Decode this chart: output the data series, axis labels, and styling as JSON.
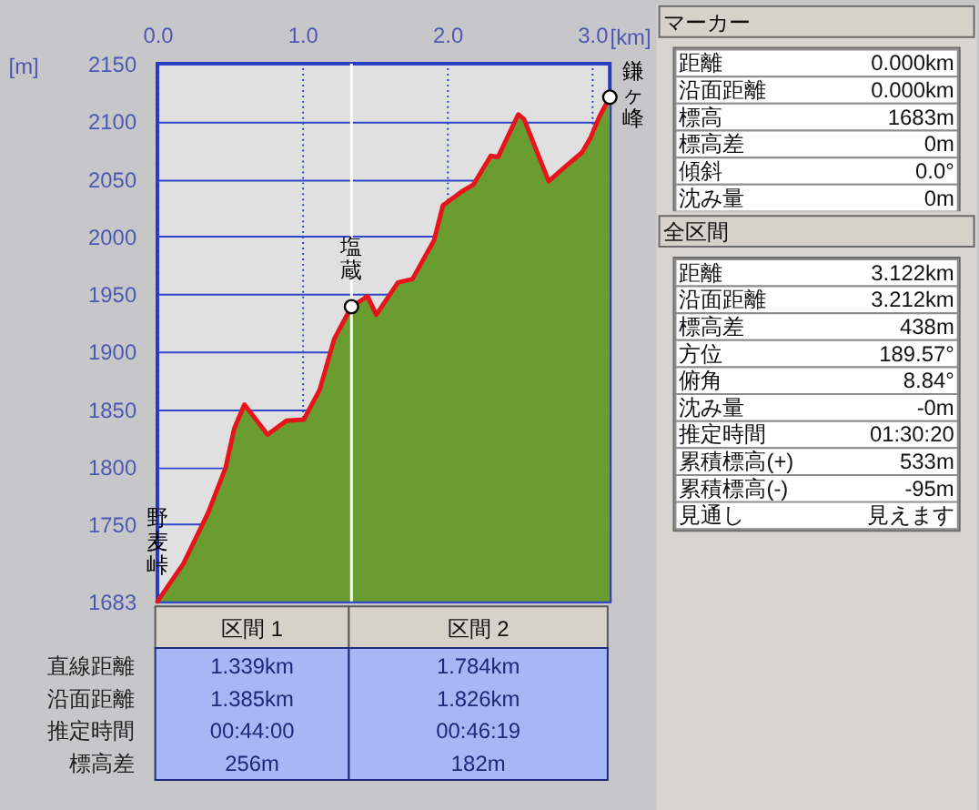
{
  "chart_data": [
    {
      "type": "area",
      "xlabel": "[km]",
      "ylabel": "[m]",
      "xlim": [
        0,
        3.122
      ],
      "ylim": [
        1683,
        2150
      ],
      "xticks": [
        {
          "value": 0,
          "label": "0.0"
        },
        {
          "value": 1,
          "label": "1.0"
        },
        {
          "value": 2,
          "label": "2.0"
        },
        {
          "value": 3,
          "label": "3.0"
        }
      ],
      "yticks": [
        1683,
        1750,
        1800,
        1850,
        1900,
        1950,
        2000,
        2050,
        2100,
        2150
      ],
      "grid": true,
      "x": [
        0,
        0.18,
        0.35,
        0.47,
        0.53,
        0.6,
        0.76,
        0.89,
        1.01,
        1.12,
        1.22,
        1.339,
        1.45,
        1.51,
        1.66,
        1.76,
        1.91,
        1.97,
        2.1,
        2.18,
        2.3,
        2.35,
        2.49,
        2.53,
        2.7,
        2.8,
        2.93,
        2.99,
        3.05,
        3.122
      ],
      "series": [
        {
          "type": "area",
          "color": "#6a9d30",
          "values": [
            1683,
            1716,
            1760,
            1799,
            1833,
            1854,
            1828,
            1840,
            1841,
            1867,
            1911,
            1939,
            1948,
            1932,
            1960,
            1963,
            1997,
            2027,
            2039,
            2045,
            2070,
            2069,
            2106,
            2102,
            2048,
            2059,
            2073,
            2086,
            2104,
            2121
          ]
        },
        {
          "type": "scatter",
          "color": "#ffffff",
          "marker": "circle",
          "x": [
            1.339,
            3.122
          ],
          "values": [
            1939,
            2121
          ]
        }
      ],
      "ref_lines": [
        {
          "axis": "x",
          "value": 1.339,
          "color": "#ffffff"
        }
      ],
      "annotations": [
        {
          "text": "野麦峠",
          "x": 0,
          "y": 1683
        },
        {
          "text": "塩蔵",
          "x": 1.339,
          "y": 1939
        },
        {
          "text": "鎌ヶ峰",
          "x": 3.122,
          "y": 2121
        }
      ]
    },
    {
      "type": "other",
      "categories": [
        "区間 1",
        "区間 2"
      ],
      "annotations": [
        "直線距離",
        "1.339km",
        "1.784km",
        "沿面距離",
        "1.385km",
        "1.826km",
        "推定時間",
        "00:44:00",
        "00:46:19",
        "標高差",
        "256m",
        "182m"
      ]
    },
    {
      "type": "other",
      "title": "マーカー",
      "annotations": [
        "距離",
        "0.000km",
        "沿面距離",
        "0.000km",
        "標高",
        "1683m",
        "標高差",
        "0m",
        "傾斜",
        "0.0°",
        "沈み量",
        "0m"
      ]
    },
    {
      "type": "other",
      "title": "全区間",
      "annotations": [
        "距離",
        "3.122km",
        "沿面距離",
        "3.212km",
        "標高差",
        "438m",
        "方位",
        "189.57°",
        "俯角",
        "8.84°",
        "沈み量",
        "-0m",
        "推定時間",
        "01:30:20",
        "累積標高(+)",
        "533m",
        "累積標高(-)",
        "-95m",
        "見通し",
        "見えます"
      ]
    }
  ]
}
